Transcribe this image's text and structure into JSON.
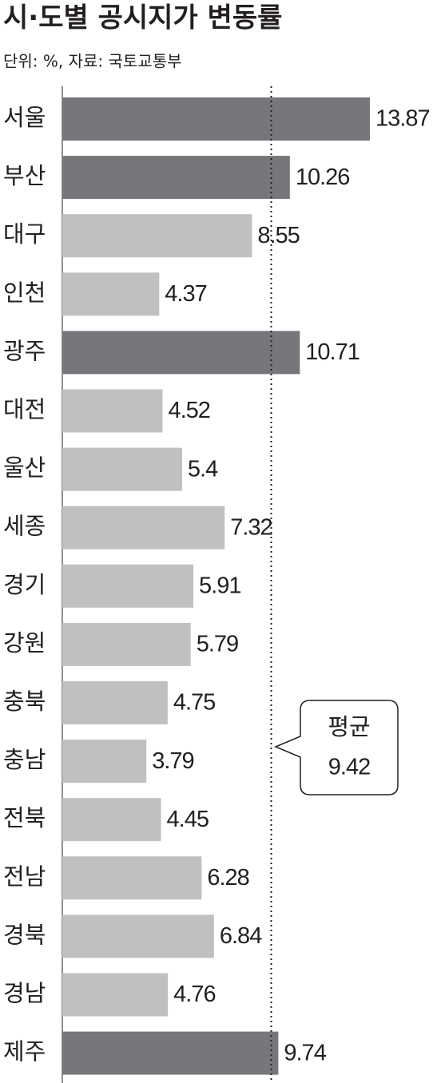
{
  "chart_data": {
    "type": "bar",
    "orientation": "horizontal",
    "title": "시·도별 공시지가 변동률",
    "subtitle": "단위: %, 자료: 국토교통부",
    "categories": [
      "서울",
      "부산",
      "대구",
      "인천",
      "광주",
      "대전",
      "울산",
      "세종",
      "경기",
      "강원",
      "충북",
      "충남",
      "전북",
      "전남",
      "경북",
      "경남",
      "제주"
    ],
    "values": [
      13.87,
      10.26,
      8.55,
      4.37,
      10.71,
      4.52,
      5.4,
      7.32,
      5.91,
      5.79,
      4.75,
      3.79,
      4.45,
      6.28,
      6.84,
      4.76,
      9.74
    ],
    "colors": [
      "#77777b",
      "#77777b",
      "#c0c0c2",
      "#c0c0c2",
      "#77777b",
      "#c0c0c2",
      "#c0c0c2",
      "#c0c0c2",
      "#c0c0c2",
      "#c0c0c2",
      "#c0c0c2",
      "#c0c0c2",
      "#c0c0c2",
      "#c0c0c2",
      "#c0c0c2",
      "#c0c0c2",
      "#77777b"
    ],
    "average": {
      "label": "평균",
      "value": 9.42
    }
  }
}
